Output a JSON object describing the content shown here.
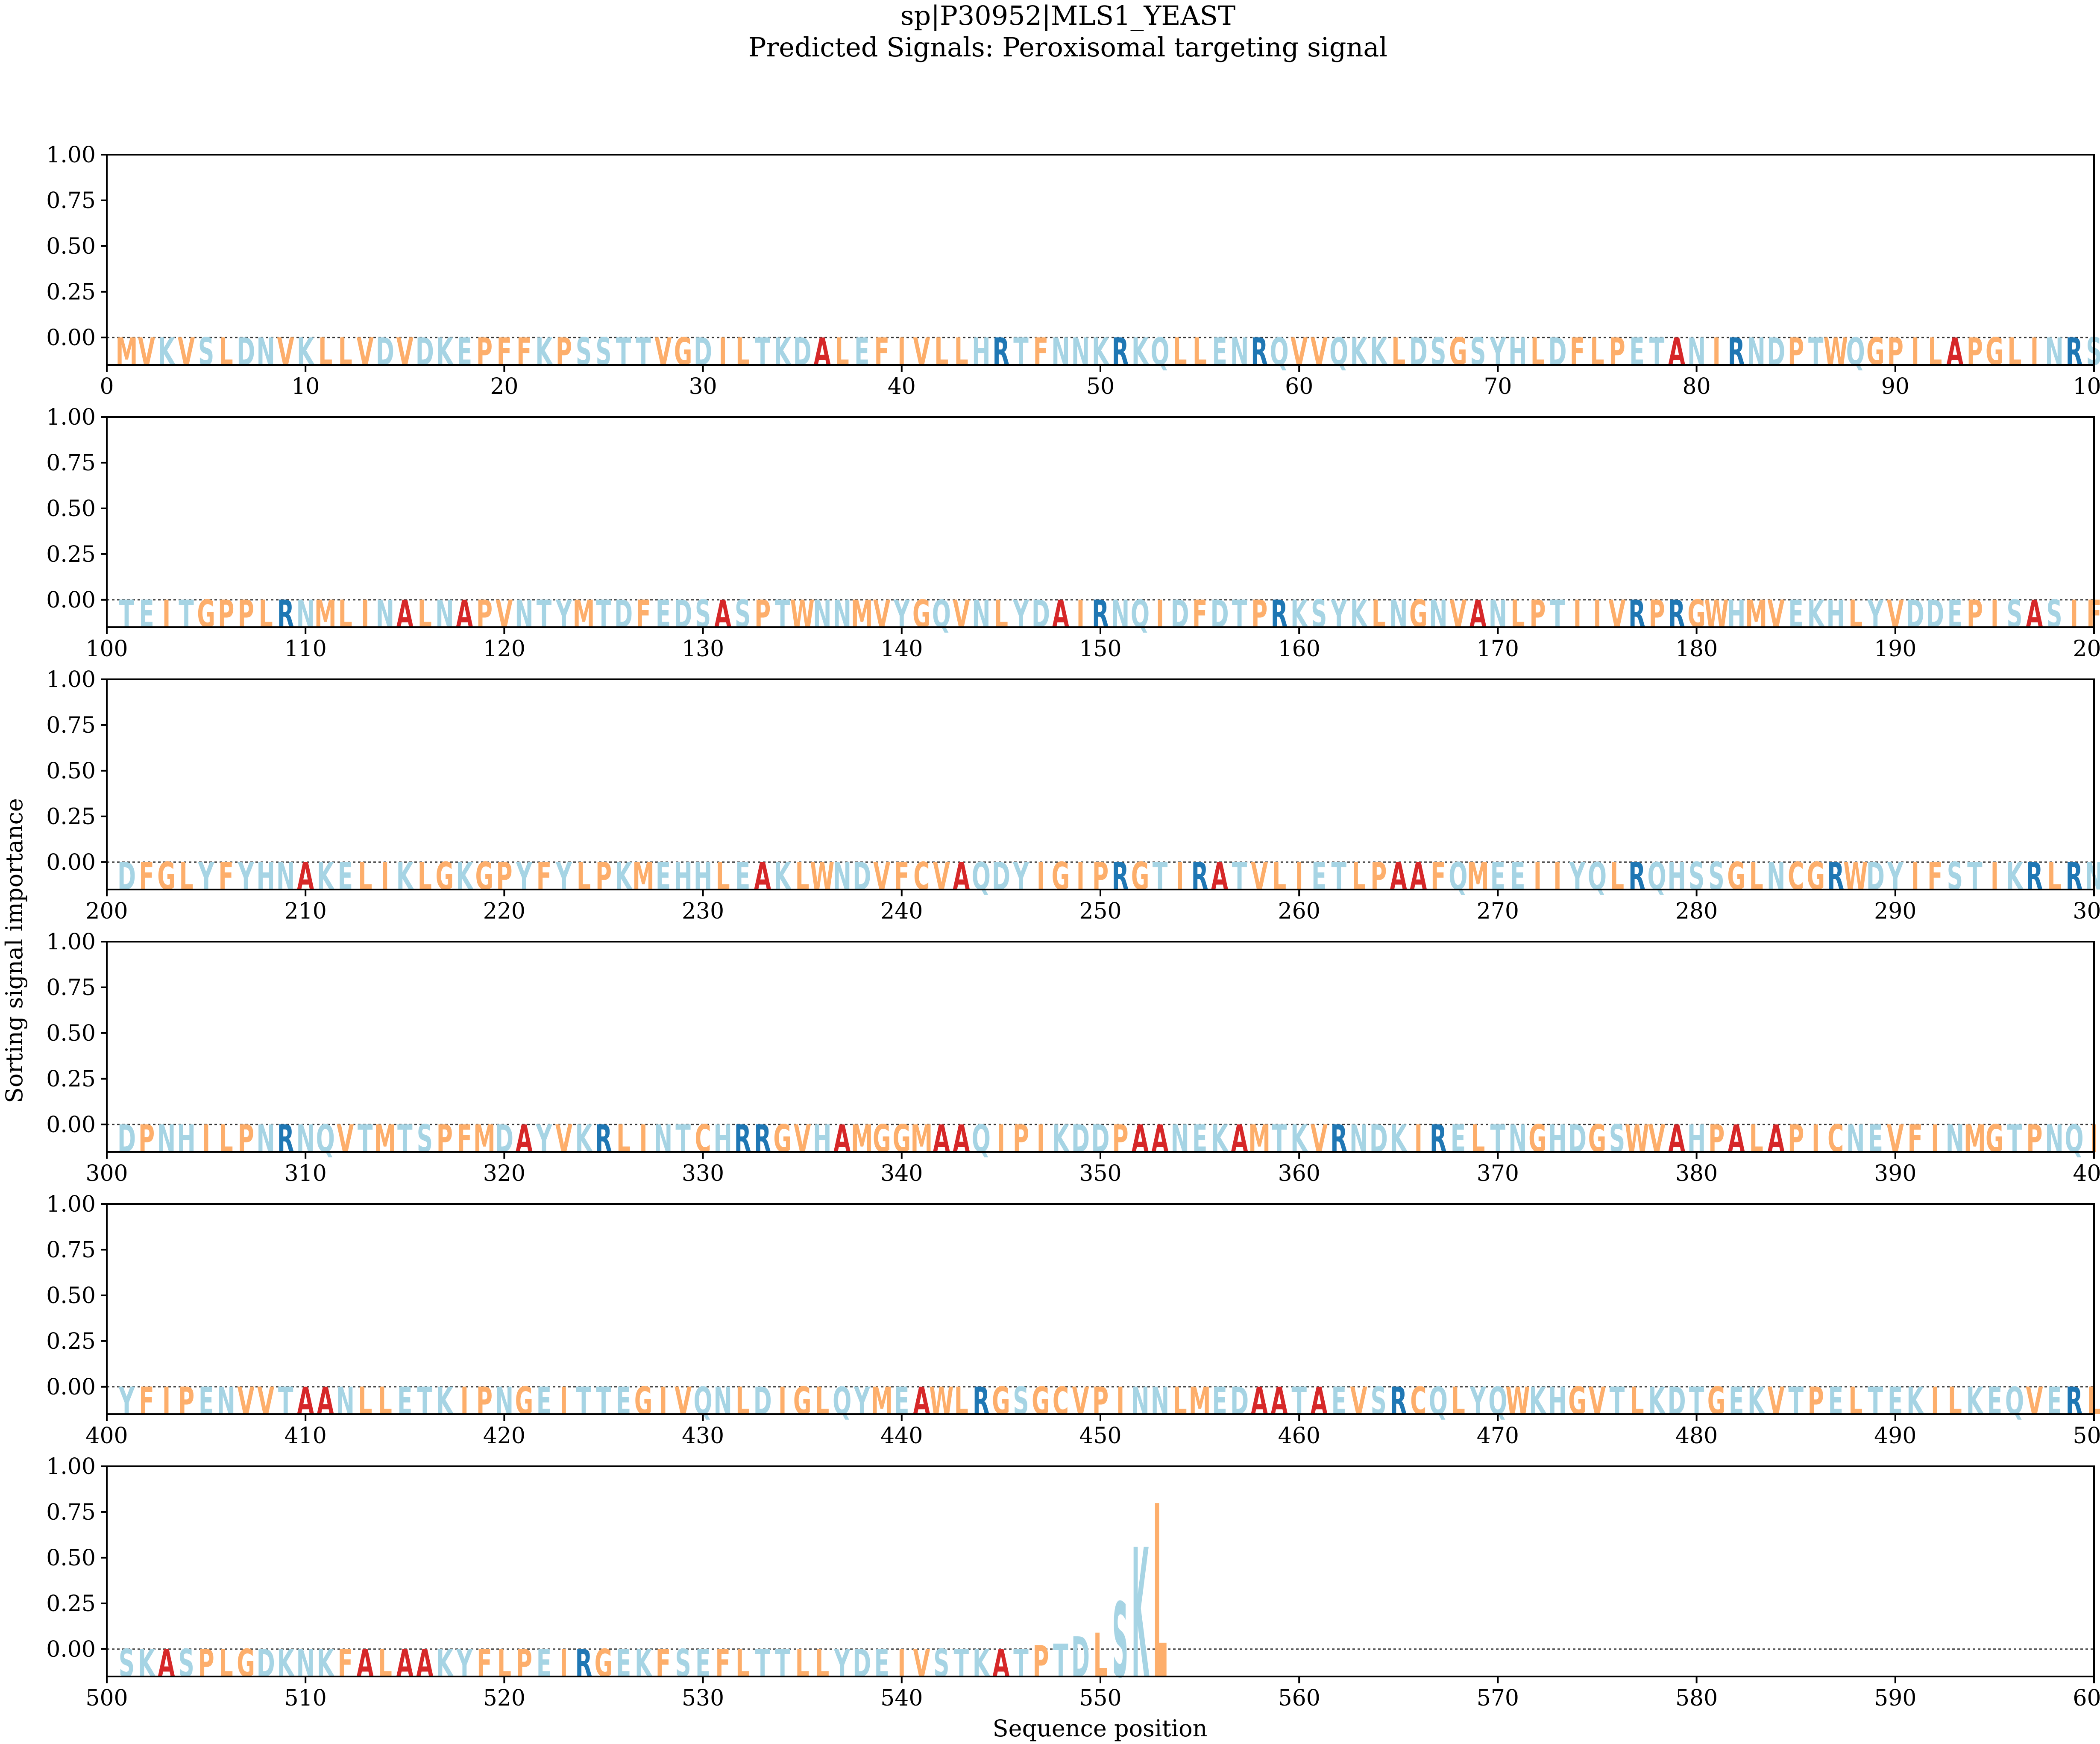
{
  "figure": {
    "title_line1": "sp|P30952|MLS1_YEAST",
    "title_line2": "Predicted Signals: Peroxisomal targeting signal"
  },
  "chart_data": {
    "type": "sequence_logo",
    "title": "sp|P30952|MLS1_YEAST",
    "subtitle": "Predicted Signals: Peroxisomal targeting signal",
    "xlabel": "Sequence position",
    "ylabel": "Sorting signal importance",
    "ylim": [
      -0.15,
      1.0
    ],
    "yticks": [
      0.0,
      0.25,
      0.5,
      0.75,
      1.0
    ],
    "ytick_labels": [
      "0.00",
      "0.25",
      "0.50",
      "0.75",
      "1.00"
    ],
    "baseline_dashed": 0.0,
    "residues_per_panel": 100,
    "panel_ranges": [
      [
        0,
        100
      ],
      [
        100,
        200
      ],
      [
        200,
        300
      ],
      [
        300,
        400
      ],
      [
        400,
        500
      ],
      [
        500,
        600
      ]
    ],
    "panel_xtick_step": 10,
    "sequence": "MVKVSLDNVKLLVDVDKEPFFKPSSTTVGDILTKDALEFIVLLHRTFNNKRKQLLENRQVVQKKLDSGSYHLDFLPETANIRNDPTWQGPILAPGLINRSTEITGPPLRNMLINALNAPVNTYMTDFEDSASPTWNNMVYGQVNLYDAIRNQIDFDTPRKSYKLNGNVANLPTIIVRPRGWHMVEKHLYVDDEPISASIFDFGLYFYHNAKELIKLGKGPYFYLPKMEHHLEAKLWNDVFCVAQDYIGIPRGTIRATVLIETLPAAFQMEEIIYQLRQHSSGLNCGRWDYIFSTIKRLRNDPNHILPNRNQVTMTSPFMDAYVKRLINTCHRRGVHAMGGMAAQIPIKDDPAANEKAMTKVRNDKIRELTNGHDGSWVAHPALAPICNEVFINMGTPNQIYFIPENVVTAANLLETKIPNGEITTEGIVQNLDIGLQYMEAWLRGSGCVPINNLMEDAATAEVSRCQLYQWKHGVTLKDTGEKVTPELTEKILKEQVERLSKASPLGDKNKFALAAKYFLPEIRGEKFSEFLTTLLYDEIVSTKATPTDLSKL",
    "sequence_length": 554,
    "importance": [
      {
        "position": 547,
        "residue": "T",
        "value": 0.02
      },
      {
        "position": 548,
        "residue": "P",
        "value": 0.03
      },
      {
        "position": 549,
        "residue": "T",
        "value": 0.07
      },
      {
        "position": 550,
        "residue": "D",
        "value": 0.09
      },
      {
        "position": 551,
        "residue": "L",
        "value": 0.26
      },
      {
        "position": 552,
        "residue": "S",
        "value": 0.56
      },
      {
        "position": 553,
        "residue": "K",
        "value": 0.8
      },
      {
        "position": 554,
        "residue": "L",
        "value": 0.99
      }
    ],
    "residue_colors": {
      "A": "#d62728",
      "R": "#1f77b4",
      "hydrophobic": "#fdae6b",
      "other": "#a6d4e4",
      "hydrophobic_residues": "VILMFWCGP"
    }
  }
}
